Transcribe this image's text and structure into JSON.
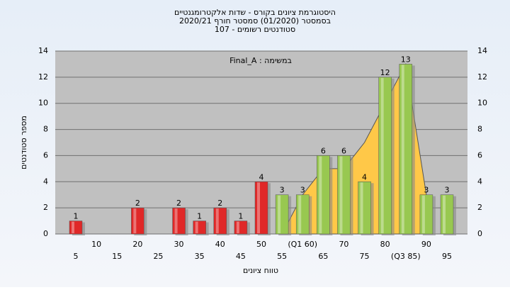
{
  "chart_data": {
    "type": "bar",
    "title": "היסטוגרמת ציונים בקורס - שדות אלקטרומגנטיים",
    "subtitle": "בסמסטר (01/2020) סמסטר חורף 2020/21",
    "subtitle2": "סטודנטים רשומים - 107",
    "annotation": "במשימה : Final_A",
    "x_label": "טווח ציונים",
    "y_label": "מספר סטודנטים",
    "categories": [
      "5",
      "10",
      "15",
      "20",
      "25",
      "30",
      "35",
      "40",
      "45",
      "50",
      "55",
      "(Q1 60)",
      "65",
      "70",
      "75",
      "80",
      "(Q3 85)",
      "90",
      "95"
    ],
    "values": [
      1,
      0,
      0,
      2,
      0,
      2,
      1,
      2,
      1,
      4,
      3,
      3,
      6,
      6,
      4,
      12,
      13,
      3,
      3
    ],
    "colors": [
      "#e02828",
      "#e02828",
      "#e02828",
      "#e02828",
      "#e02828",
      "#e02828",
      "#e02828",
      "#e02828",
      "#e02828",
      "#e02828",
      "#98c850",
      "#98c850",
      "#98c850",
      "#98c850",
      "#98c850",
      "#98c850",
      "#98c850",
      "#98c850",
      "#98c850"
    ],
    "overlay": {
      "color": "#ffc848",
      "values": [
        null,
        null,
        null,
        null,
        null,
        null,
        null,
        null,
        null,
        null,
        0,
        3,
        5,
        5,
        7,
        10,
        13,
        3,
        null
      ]
    },
    "ylim": [
      0,
      14
    ],
    "yticks": [
      0,
      2,
      4,
      6,
      8,
      10,
      12,
      14
    ],
    "grid": true
  }
}
